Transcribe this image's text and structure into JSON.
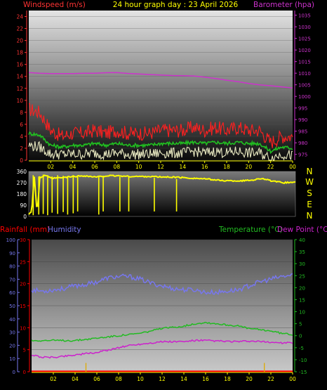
{
  "header": {
    "left_label": "Windspeed (m/s)",
    "center_label": "24 hour graph day : 23 April 2026",
    "right_label": "Barometer (hpa)"
  },
  "colors": {
    "wind_max": "#ff2020",
    "wind_avg": "#20c020",
    "wind_min": "#e8e8c0",
    "barometer": "#cc33cc",
    "direction": "#ffff00",
    "humidity": "#7777ee",
    "temperature": "#22bb22",
    "dewpoint": "#cc22cc",
    "rainfall": "#ff0000",
    "x_ticks": "#ffff00",
    "wind_axis": "#ff3333",
    "baro_axis": "#cc33cc"
  },
  "chart_data": [
    {
      "type": "line",
      "title": "24 hour graph day : 23 April 2026",
      "x_tick_labels": [
        "02",
        "04",
        "06",
        "08",
        "10",
        "12",
        "14",
        "16",
        "18",
        "20",
        "22",
        "00"
      ],
      "y_left": {
        "label": "Windspeed (m/s)",
        "ticks": [
          0,
          2,
          4,
          6,
          8,
          10,
          12,
          14,
          16,
          18,
          20,
          22,
          24
        ],
        "lim": [
          0,
          25
        ]
      },
      "y_right": {
        "label": "Barometer (hpa)",
        "ticks": [
          975,
          980,
          985,
          990,
          995,
          1000,
          1005,
          1010,
          1015,
          1020,
          1025,
          1030,
          1035
        ],
        "lim": [
          972.5,
          1037
        ]
      },
      "x": [
        0,
        1,
        2,
        3,
        4,
        5,
        6,
        7,
        8,
        9,
        10,
        11,
        12,
        13,
        14,
        15,
        16,
        17,
        18,
        19,
        20,
        21,
        22,
        23,
        24
      ],
      "series": [
        {
          "name": "",
          "key": "wind_max",
          "values": [
            8.5,
            8.0,
            5.0,
            4.0,
            4.5,
            4.5,
            5.0,
            4.5,
            5.0,
            4.5,
            4.5,
            4.5,
            5.0,
            5.0,
            5.0,
            5.5,
            5.0,
            5.5,
            5.0,
            5.5,
            5.0,
            5.0,
            3.0,
            4.0,
            4.0
          ]
        },
        {
          "name": "",
          "key": "wind_avg",
          "values": [
            4.5,
            4.2,
            2.5,
            2.2,
            2.5,
            2.5,
            2.8,
            2.5,
            2.8,
            2.5,
            2.5,
            2.5,
            2.8,
            2.8,
            2.8,
            3.0,
            2.8,
            3.0,
            2.8,
            3.0,
            2.8,
            2.8,
            1.5,
            2.2,
            2.0
          ]
        },
        {
          "name": "",
          "key": "wind_min",
          "values": [
            2.5,
            2.2,
            1.0,
            1.0,
            1.0,
            1.0,
            1.2,
            1.0,
            1.2,
            1.0,
            1.0,
            1.0,
            1.2,
            1.2,
            1.2,
            1.5,
            1.2,
            1.5,
            1.2,
            1.5,
            1.2,
            1.2,
            0.3,
            1.0,
            0.8
          ]
        },
        {
          "name": "",
          "key": "barometer",
          "axis": "right",
          "values": [
            1010.3,
            1010.0,
            1009.8,
            1009.8,
            1009.8,
            1010.0,
            1010.0,
            1010.2,
            1010.3,
            1009.9,
            1009.7,
            1009.4,
            1009.2,
            1009.0,
            1008.9,
            1008.8,
            1008.3,
            1007.7,
            1007.0,
            1006.4,
            1005.6,
            1005.0,
            1004.6,
            1004.1,
            1003.6
          ]
        }
      ]
    },
    {
      "type": "line",
      "title": "",
      "y_left": {
        "ticks": [
          0,
          90,
          180,
          270,
          360
        ],
        "lim": [
          0,
          360
        ]
      },
      "y_right": {
        "ticks": [
          "N",
          "W",
          "S",
          "E",
          "N"
        ]
      },
      "x": [
        0,
        0.25,
        0.5,
        0.75,
        1,
        1.5,
        2,
        3,
        4,
        5,
        6,
        7,
        8,
        9,
        10,
        11,
        12,
        13,
        14,
        15,
        16,
        17,
        18,
        19,
        20,
        21,
        22,
        23,
        24
      ],
      "series": [
        {
          "name": "",
          "key": "direction",
          "values": [
            20,
            40,
            320,
            25,
            310,
            330,
            305,
            310,
            320,
            325,
            315,
            325,
            325,
            320,
            320,
            320,
            315,
            315,
            310,
            305,
            300,
            290,
            285,
            285,
            290,
            305,
            280,
            270,
            275
          ]
        }
      ],
      "spikes": [
        {
          "x": 0.4,
          "low": 10,
          "high": 330
        },
        {
          "x": 0.9,
          "low": 15,
          "high": 320
        },
        {
          "x": 1.3,
          "low": 20,
          "high": 335
        },
        {
          "x": 1.7,
          "low": 10,
          "high": 325
        },
        {
          "x": 2.1,
          "low": 30,
          "high": 320
        },
        {
          "x": 2.6,
          "low": 20,
          "high": 330
        },
        {
          "x": 3.1,
          "low": 35,
          "high": 325
        },
        {
          "x": 3.5,
          "low": 15,
          "high": 320
        },
        {
          "x": 4.0,
          "low": 25,
          "high": 330
        },
        {
          "x": 4.4,
          "low": 40,
          "high": 320
        },
        {
          "x": 6.3,
          "low": 15,
          "high": 320
        },
        {
          "x": 6.7,
          "low": 40,
          "high": 320
        },
        {
          "x": 8.2,
          "low": 40,
          "high": 315
        },
        {
          "x": 9.0,
          "low": 40,
          "high": 320
        },
        {
          "x": 11.3,
          "low": 40,
          "high": 310
        },
        {
          "x": 13.3,
          "low": 40,
          "high": 300
        }
      ]
    },
    {
      "type": "line",
      "title": "",
      "header_left": {
        "rainfall": "Rainfall (mm)",
        "humidity": "Humidity"
      },
      "header_right": {
        "temperature": "Temperature (°C)",
        "dewpoint": "Dew Point (°C)"
      },
      "x_tick_labels": [
        "02",
        "04",
        "06",
        "08",
        "10",
        "12",
        "14",
        "16",
        "18",
        "20",
        "22",
        "00"
      ],
      "y_humidity": {
        "ticks": [
          0,
          10,
          20,
          30,
          40,
          50,
          60,
          70,
          80,
          90,
          100
        ],
        "lim": [
          0,
          100
        ]
      },
      "y_rainfall": {
        "ticks": [
          0,
          5,
          10,
          15,
          20,
          25,
          30
        ],
        "lim": [
          0,
          30
        ]
      },
      "y_temperature": {
        "ticks": [
          -15,
          -10,
          -5,
          0,
          5,
          10,
          15,
          20,
          25,
          30,
          35,
          40
        ],
        "lim": [
          -15,
          40
        ]
      },
      "x": [
        0,
        1,
        2,
        3,
        4,
        5,
        6,
        7,
        8,
        9,
        10,
        11,
        12,
        13,
        14,
        15,
        16,
        17,
        18,
        19,
        20,
        21,
        22,
        23,
        24
      ],
      "series": [
        {
          "name": "Humidity",
          "key": "humidity",
          "axis": "humidity",
          "values": [
            62,
            61,
            62,
            63,
            65,
            66,
            68,
            71,
            72,
            72,
            70,
            67,
            65,
            63,
            62,
            62,
            60,
            60,
            61,
            62,
            65,
            68,
            70,
            72,
            73
          ]
        },
        {
          "name": "Temperature (°C)",
          "key": "temperature",
          "axis": "temperature",
          "values": [
            -2,
            -2,
            -2,
            -2,
            -2,
            -1.5,
            -1,
            -0.5,
            0,
            0.5,
            1,
            2,
            3,
            3.5,
            4,
            5,
            5.5,
            5,
            4.5,
            4,
            3,
            2.5,
            2,
            1,
            0.5
          ]
        },
        {
          "name": "Dew Point (°C)",
          "key": "dewpoint",
          "axis": "temperature",
          "values": [
            -8,
            -9,
            -9,
            -8.5,
            -8,
            -7.5,
            -7,
            -6,
            -5,
            -4,
            -3.5,
            -3,
            -2.5,
            -2.5,
            -2.5,
            -2,
            -2,
            -2.2,
            -2.4,
            -2.5,
            -2.3,
            -2.5,
            -2.7,
            -3,
            -3
          ]
        },
        {
          "name": "Rainfall (mm)",
          "key": "rainfall",
          "axis": "rainfall",
          "values": [
            0.1,
            0.1,
            0.1,
            0.1,
            0.1,
            0.1,
            0.1,
            0.1,
            0.1,
            0.1,
            0.1,
            0.1,
            0.1,
            0.1,
            0.1,
            0.1,
            0.1,
            0.1,
            0.1,
            0.1,
            0.1,
            0.1,
            0.1,
            0.1,
            0.1
          ]
        }
      ],
      "rain_markers": [
        {
          "x": 5.0,
          "value": 2.0
        },
        {
          "x": 21.4,
          "value": 2.0
        }
      ]
    }
  ]
}
